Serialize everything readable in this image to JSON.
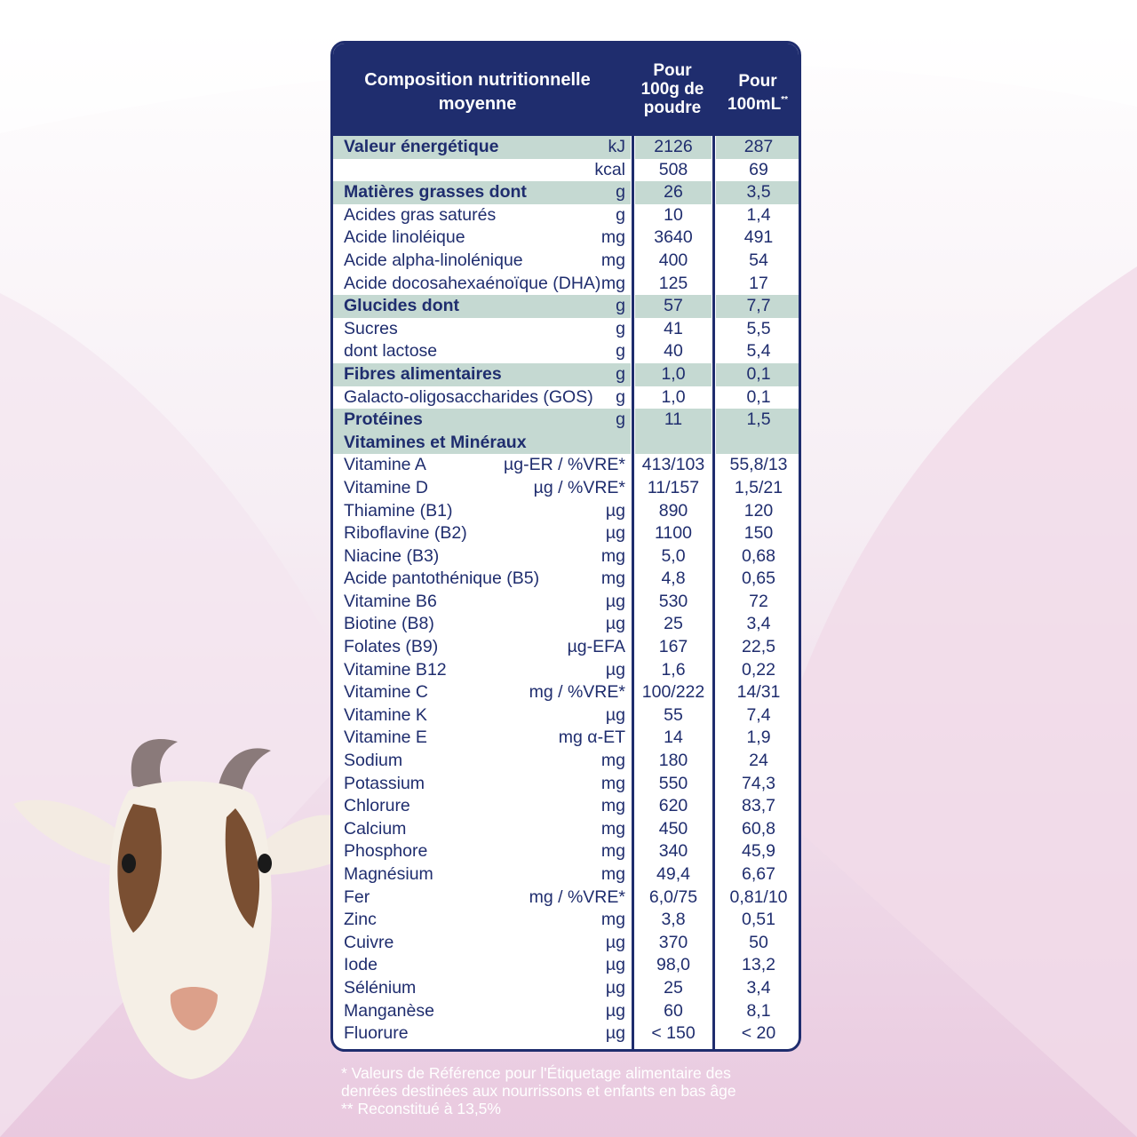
{
  "header": {
    "title": "Composition nutritionnelle moyenne",
    "col1": "Pour 100g de poudre",
    "col2": "Pour 100mL",
    "col2_mark": "**"
  },
  "rows": [
    {
      "label": "Valeur énergétique",
      "unit": "kJ",
      "v1": "2126",
      "v2": "287",
      "highlight": true,
      "bold": true
    },
    {
      "label": "",
      "unit": "kcal",
      "v1": "508",
      "v2": "69",
      "highlight": false,
      "bold": false
    },
    {
      "label": "Matières grasses dont",
      "unit": "g",
      "v1": "26",
      "v2": "3,5",
      "highlight": true,
      "bold": true
    },
    {
      "label": "Acides gras saturés",
      "unit": "g",
      "v1": "10",
      "v2": "1,4",
      "highlight": false,
      "bold": false
    },
    {
      "label": "Acide linoléique",
      "unit": "mg",
      "v1": "3640",
      "v2": "491",
      "highlight": false,
      "bold": false
    },
    {
      "label": "Acide alpha-linolénique",
      "unit": "mg",
      "v1": "400",
      "v2": "54",
      "highlight": false,
      "bold": false
    },
    {
      "label": "Acide docosahexaénoïque (DHA)",
      "unit": "mg",
      "v1": "125",
      "v2": "17",
      "highlight": false,
      "bold": false
    },
    {
      "label": "Glucides dont",
      "unit": "g",
      "v1": "57",
      "v2": "7,7",
      "highlight": true,
      "bold": true
    },
    {
      "label": "Sucres",
      "unit": "g",
      "v1": "41",
      "v2": "5,5",
      "highlight": false,
      "bold": false
    },
    {
      "label": "  dont lactose",
      "unit": "g",
      "v1": "40",
      "v2": "5,4",
      "highlight": false,
      "bold": false
    },
    {
      "label": "Fibres alimentaires",
      "unit": "g",
      "v1": "1,0",
      "v2": "0,1",
      "highlight": true,
      "bold": true
    },
    {
      "label": "Galacto-oligosaccharides (GOS)",
      "unit": "g",
      "v1": "1,0",
      "v2": "0,1",
      "highlight": false,
      "bold": false
    },
    {
      "label": "Protéines",
      "unit": "g",
      "v1": "11",
      "v2": "1,5",
      "highlight": true,
      "bold": true
    },
    {
      "label": "Vitamines et Minéraux",
      "unit": "",
      "v1": "",
      "v2": "",
      "highlight": true,
      "bold": true
    },
    {
      "label": "Vitamine A",
      "unit": "µg-ER / %VRE*",
      "v1": "413/103",
      "v2": "55,8/13",
      "highlight": false,
      "bold": false
    },
    {
      "label": "Vitamine D",
      "unit": "µg / %VRE*",
      "v1": "11/157",
      "v2": "1,5/21",
      "highlight": false,
      "bold": false
    },
    {
      "label": "Thiamine (B1)",
      "unit": "µg",
      "v1": "890",
      "v2": "120",
      "highlight": false,
      "bold": false
    },
    {
      "label": "Riboflavine (B2)",
      "unit": "µg",
      "v1": "1100",
      "v2": "150",
      "highlight": false,
      "bold": false
    },
    {
      "label": "Niacine (B3)",
      "unit": "mg",
      "v1": "5,0",
      "v2": "0,68",
      "highlight": false,
      "bold": false
    },
    {
      "label": "Acide pantothénique (B5)",
      "unit": "mg",
      "v1": "4,8",
      "v2": "0,65",
      "highlight": false,
      "bold": false
    },
    {
      "label": "Vitamine B6",
      "unit": "µg",
      "v1": "530",
      "v2": "72",
      "highlight": false,
      "bold": false
    },
    {
      "label": "Biotine (B8)",
      "unit": "µg",
      "v1": "25",
      "v2": "3,4",
      "highlight": false,
      "bold": false
    },
    {
      "label": "Folates (B9)",
      "unit": "µg-EFA",
      "v1": "167",
      "v2": "22,5",
      "highlight": false,
      "bold": false
    },
    {
      "label": "Vitamine B12",
      "unit": "µg",
      "v1": "1,6",
      "v2": "0,22",
      "highlight": false,
      "bold": false
    },
    {
      "label": "Vitamine C",
      "unit": "mg / %VRE*",
      "v1": "100/222",
      "v2": "14/31",
      "highlight": false,
      "bold": false
    },
    {
      "label": "Vitamine K",
      "unit": "µg",
      "v1": "55",
      "v2": "7,4",
      "highlight": false,
      "bold": false
    },
    {
      "label": "Vitamine E",
      "unit": "mg α-ET",
      "v1": "14",
      "v2": "1,9",
      "highlight": false,
      "bold": false
    },
    {
      "label": "Sodium",
      "unit": "mg",
      "v1": "180",
      "v2": "24",
      "highlight": false,
      "bold": false
    },
    {
      "label": "Potassium",
      "unit": "mg",
      "v1": "550",
      "v2": "74,3",
      "highlight": false,
      "bold": false
    },
    {
      "label": "Chlorure",
      "unit": "mg",
      "v1": "620",
      "v2": "83,7",
      "highlight": false,
      "bold": false
    },
    {
      "label": "Calcium",
      "unit": "mg",
      "v1": "450",
      "v2": "60,8",
      "highlight": false,
      "bold": false
    },
    {
      "label": "Phosphore",
      "unit": "mg",
      "v1": "340",
      "v2": "45,9",
      "highlight": false,
      "bold": false
    },
    {
      "label": "Magnésium",
      "unit": "mg",
      "v1": "49,4",
      "v2": "6,67",
      "highlight": false,
      "bold": false
    },
    {
      "label": "Fer",
      "unit": "mg / %VRE*",
      "v1": "6,0/75",
      "v2": "0,81/10",
      "highlight": false,
      "bold": false
    },
    {
      "label": "Zinc",
      "unit": "mg",
      "v1": "3,8",
      "v2": "0,51",
      "highlight": false,
      "bold": false
    },
    {
      "label": "Cuivre",
      "unit": "µg",
      "v1": "370",
      "v2": "50",
      "highlight": false,
      "bold": false
    },
    {
      "label": "Iode",
      "unit": "µg",
      "v1": "98,0",
      "v2": "13,2",
      "highlight": false,
      "bold": false
    },
    {
      "label": "Sélénium",
      "unit": "µg",
      "v1": "25",
      "v2": "3,4",
      "highlight": false,
      "bold": false
    },
    {
      "label": "Manganèse",
      "unit": "µg",
      "v1": "60",
      "v2": "8,1",
      "highlight": false,
      "bold": false
    },
    {
      "label": "Fluorure",
      "unit": "µg",
      "v1": "< 150",
      "v2": "< 20",
      "highlight": false,
      "bold": false
    }
  ],
  "footnote": {
    "line1": "* Valeurs de Référence pour l'Étiquetage alimentaire des",
    "line2": "denrées destinées aux nourrissons et enfants en bas âge",
    "line3": "** Reconstitué à 13,5%"
  },
  "colors": {
    "navy": "#1f2d6e",
    "highlight_row": "#c5d9d2",
    "background_pink": "#e9c9df"
  },
  "icons": {
    "mascot": "goat-illustration"
  }
}
